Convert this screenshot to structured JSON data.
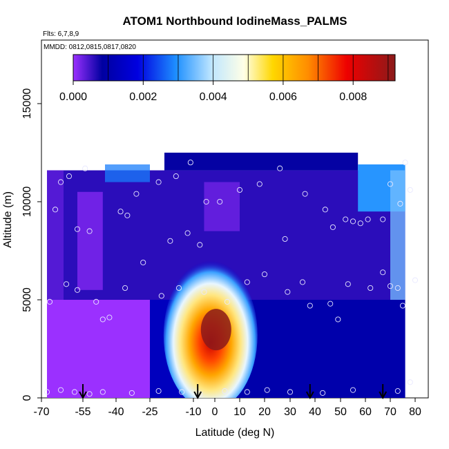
{
  "chart_data": {
    "type": "heatmap",
    "title": "ATOM1 Northbound IodineMass_PALMS",
    "flights_label": "Flts: 6,7,8,9",
    "dates_label": "MMDD: 0812,0815,0817,0820",
    "xlabel": "Latitude (deg N)",
    "ylabel": "Altitude (m)",
    "xlim": [
      -70,
      85
    ],
    "ylim": [
      0,
      17000
    ],
    "x_ticks": [
      -70,
      -55,
      -40,
      -25,
      -10,
      0,
      10,
      20,
      30,
      40,
      50,
      60,
      70,
      80
    ],
    "x_tick_labels": [
      "-70",
      "-55",
      "-40",
      "-25",
      "-10",
      "0",
      "10",
      "20",
      "30",
      "40",
      "50",
      "60",
      "70",
      "80"
    ],
    "y_ticks": [
      0,
      5000,
      10000,
      15000
    ],
    "y_tick_labels": [
      "0",
      "5000",
      "10000",
      "15000"
    ],
    "colorbar": {
      "min": 0.0,
      "max": 0.0092,
      "ticks": [
        0.0,
        0.002,
        0.004,
        0.006,
        0.008
      ],
      "tick_labels": [
        "0.000",
        "0.002",
        "0.004",
        "0.006",
        "0.008"
      ],
      "colors": [
        "#8a2be2",
        "#00008b",
        "#0000cd",
        "#1e90ff",
        "#87cefa",
        "#f0f8ff",
        "#ffffe0",
        "#ffd700",
        "#ffa500",
        "#ff4500",
        "#cc0000",
        "#8b1a1a"
      ]
    },
    "arrows_latitude": [
      -55,
      -8,
      38,
      67
    ],
    "field_regions": [
      {
        "x": [
          -68,
          -25
        ],
        "y": [
          0,
          5000
        ],
        "value": 0.0
      },
      {
        "x": [
          -68,
          76
        ],
        "y": [
          5000,
          11600
        ],
        "value": 0.0006
      },
      {
        "x": [
          -20,
          57
        ],
        "y": [
          11600,
          12500
        ],
        "value": 0.0008
      },
      {
        "x": [
          57,
          76
        ],
        "y": [
          9500,
          11900
        ],
        "value": 0.003
      },
      {
        "x": [
          -25,
          76
        ],
        "y": [
          0,
          5000
        ],
        "value": 0.001
      }
    ],
    "plume": {
      "lat_center": -2,
      "alt_center": 3200,
      "value_max": 0.0092
    },
    "sample_points": [
      [
        -68,
        300
      ],
      [
        -63,
        400
      ],
      [
        -58,
        300
      ],
      [
        -52,
        200
      ],
      [
        -46,
        300
      ],
      [
        -33,
        250
      ],
      [
        -22,
        350
      ],
      [
        -14,
        300
      ],
      [
        -7,
        200
      ],
      [
        4,
        350
      ],
      [
        13,
        300
      ],
      [
        21,
        400
      ],
      [
        30,
        300
      ],
      [
        43,
        250
      ],
      [
        55,
        400
      ],
      [
        73,
        350
      ],
      [
        78,
        800
      ],
      [
        -67,
        4900
      ],
      [
        -61,
        5800
      ],
      [
        -57,
        5500
      ],
      [
        -49,
        4900
      ],
      [
        -46,
        4000
      ],
      [
        -43,
        4100
      ],
      [
        -36,
        5600
      ],
      [
        -28,
        6900
      ],
      [
        -21,
        5200
      ],
      [
        -15,
        5600
      ],
      [
        -5,
        5400
      ],
      [
        5,
        4900
      ],
      [
        13,
        5900
      ],
      [
        20,
        6300
      ],
      [
        29,
        5400
      ],
      [
        35,
        5900
      ],
      [
        38,
        4700
      ],
      [
        46,
        4800
      ],
      [
        49,
        4000
      ],
      [
        53,
        5800
      ],
      [
        62,
        5600
      ],
      [
        67,
        6400
      ],
      [
        70,
        5700
      ],
      [
        73,
        5600
      ],
      [
        75,
        4700
      ],
      [
        -65,
        9600
      ],
      [
        -57,
        8600
      ],
      [
        -52,
        8500
      ],
      [
        -38,
        9500
      ],
      [
        -35,
        9300
      ],
      [
        -31,
        10400
      ],
      [
        -22,
        11000
      ],
      [
        -18,
        8000
      ],
      [
        -12,
        8400
      ],
      [
        -7,
        7800
      ],
      [
        -4,
        10000
      ],
      [
        2,
        10000
      ],
      [
        10,
        10600
      ],
      [
        18,
        10900
      ],
      [
        28,
        8100
      ],
      [
        36,
        10400
      ],
      [
        44,
        9600
      ],
      [
        47,
        8700
      ],
      [
        52,
        9100
      ],
      [
        55,
        9000
      ],
      [
        58,
        8900
      ],
      [
        61,
        9100
      ],
      [
        67,
        9100
      ],
      [
        70,
        10900
      ],
      [
        74,
        9900
      ],
      [
        78,
        10600
      ],
      [
        80,
        6000
      ],
      [
        -63,
        11000
      ],
      [
        -60,
        11300
      ],
      [
        -54,
        11700
      ],
      [
        -16,
        11300
      ],
      [
        -11,
        12000
      ],
      [
        26,
        11700
      ],
      [
        76,
        12000
      ]
    ]
  }
}
